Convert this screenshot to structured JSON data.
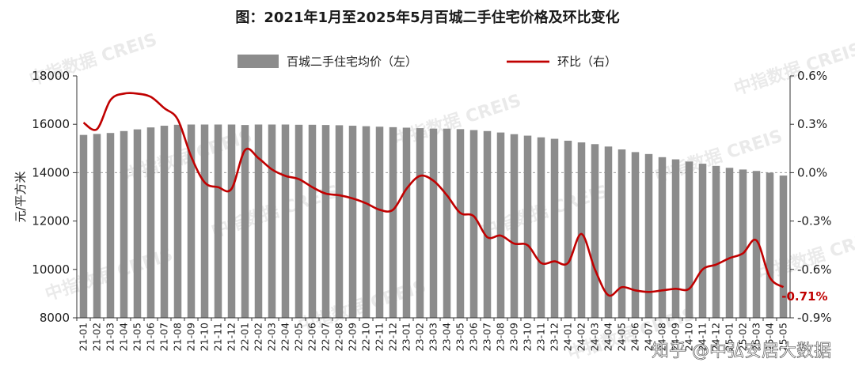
{
  "title": "图：2021年1月至2025年5月百城二手住宅价格及环比变化",
  "watermark": "中指数据 CREIS",
  "credit": "知乎 @中弘安居大数据",
  "chart_data": {
    "type": "bar+line",
    "title": "图：2021年1月至2025年5月百城二手住宅价格及环比变化",
    "ylabel_left": "元/平方米",
    "ylim_left": [
      8000,
      18000
    ],
    "yticks_left": [
      "8000",
      "10000",
      "12000",
      "14000",
      "16000",
      "18000"
    ],
    "ylim_right": [
      -0.9,
      0.6
    ],
    "yticks_right": [
      "-0.9%",
      "-0.6%",
      "-0.3%",
      "0.0%",
      "0.3%",
      "0.6%"
    ],
    "legend_position": "top",
    "colors": {
      "bar": "#8c8c8c",
      "line": "#c00000"
    },
    "categories": [
      "21-01",
      "21-02",
      "21-03",
      "21-04",
      "21-05",
      "21-06",
      "21-07",
      "21-08",
      "21-09",
      "21-10",
      "21-11",
      "21-12",
      "22-01",
      "22-02",
      "22-03",
      "22-04",
      "22-05",
      "22-06",
      "22-07",
      "22-08",
      "22-09",
      "22-10",
      "22-11",
      "22-12",
      "23-01",
      "23-02",
      "23-03",
      "23-04",
      "23-05",
      "23-06",
      "23-07",
      "23-08",
      "23-09",
      "23-10",
      "23-11",
      "23-12",
      "24-01",
      "24-02",
      "24-03",
      "24-04",
      "24-05",
      "24-06",
      "24-07",
      "24-08",
      "24-09",
      "24-10",
      "24-11",
      "24-12",
      "25-01",
      "25-02",
      "25-03",
      "25-04",
      "25-05"
    ],
    "series": [
      {
        "name": "百城二手住宅均价（左）",
        "type": "bar",
        "axis": "left",
        "values": [
          15560,
          15600,
          15640,
          15720,
          15790,
          15870,
          15940,
          15980,
          15990,
          15990,
          15990,
          15990,
          15970,
          15990,
          15990,
          15990,
          15980,
          15980,
          15970,
          15960,
          15940,
          15920,
          15900,
          15880,
          15860,
          15840,
          15820,
          15820,
          15800,
          15760,
          15720,
          15660,
          15590,
          15530,
          15460,
          15400,
          15320,
          15250,
          15180,
          15080,
          14960,
          14850,
          14770,
          14640,
          14550,
          14460,
          14370,
          14280,
          14200,
          14130,
          14070,
          14000,
          13880
        ]
      },
      {
        "name": "环比（右）",
        "type": "line",
        "axis": "right",
        "values": [
          0.31,
          0.27,
          0.45,
          0.49,
          0.49,
          0.47,
          0.4,
          0.33,
          0.1,
          -0.06,
          -0.09,
          -0.1,
          0.14,
          0.09,
          0.02,
          -0.02,
          -0.04,
          -0.09,
          -0.13,
          -0.14,
          -0.16,
          -0.19,
          -0.23,
          -0.23,
          -0.1,
          -0.02,
          -0.05,
          -0.14,
          -0.25,
          -0.27,
          -0.4,
          -0.39,
          -0.44,
          -0.45,
          -0.56,
          -0.55,
          -0.56,
          -0.38,
          -0.6,
          -0.76,
          -0.71,
          -0.73,
          -0.74,
          -0.73,
          -0.72,
          -0.72,
          -0.6,
          -0.57,
          -0.53,
          -0.5,
          -0.42,
          -0.65,
          -0.71
        ]
      }
    ],
    "end_label": "-0.71%"
  }
}
